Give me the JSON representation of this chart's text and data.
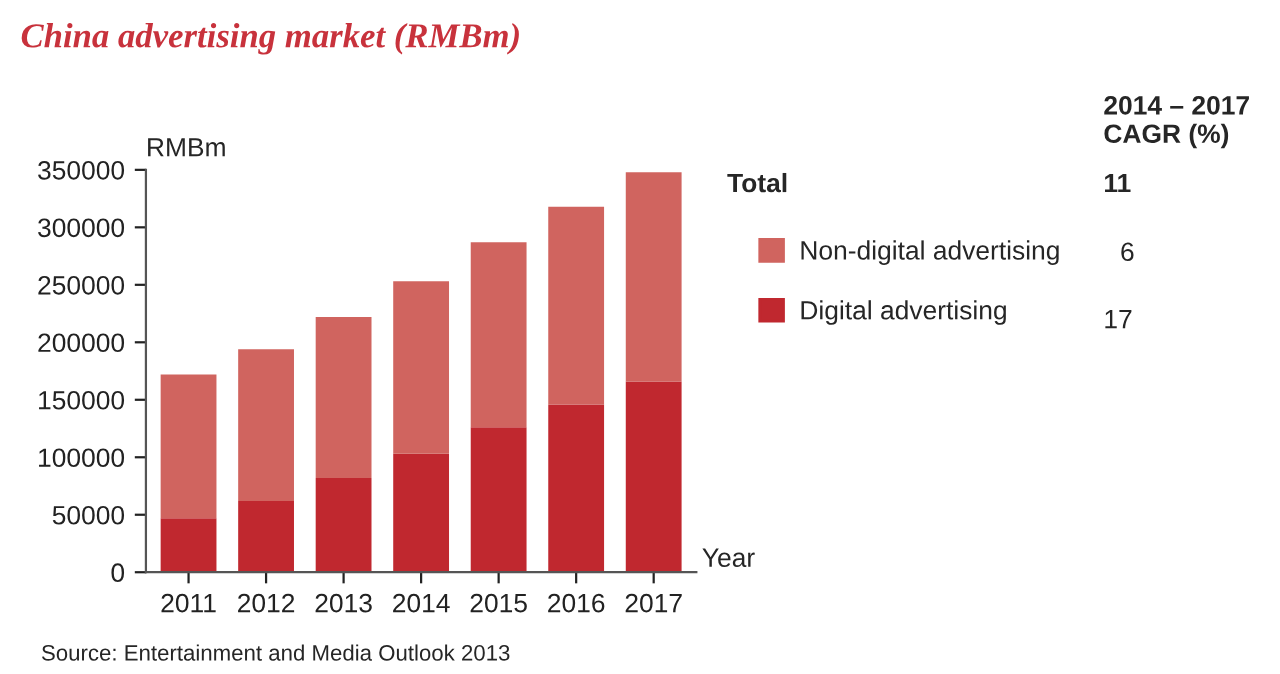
{
  "chart_data": {
    "type": "bar",
    "title": "China advertising market (RMBm)",
    "ylabel": "RMBm",
    "xlabel": "Year",
    "categories": [
      "2011",
      "2012",
      "2013",
      "2014",
      "2015",
      "2016",
      "2017"
    ],
    "stacked": true,
    "series": [
      {
        "name": "Digital advertising",
        "color": "#c0282f",
        "values": [
          47000,
          62000,
          82000,
          103000,
          126000,
          146000,
          166000
        ]
      },
      {
        "name": "Non-digital advertising",
        "color": "#d0645f",
        "values": [
          125000,
          132000,
          140000,
          150000,
          161000,
          172000,
          182000
        ]
      }
    ],
    "ylim": [
      0,
      350000
    ],
    "yticks": [
      0,
      50000,
      100000,
      150000,
      200000,
      250000,
      300000,
      350000
    ],
    "grid": false,
    "legend": "right",
    "annotations": [
      "2014 – 2017\nCAGR (%)",
      "Total",
      "11",
      "17",
      "6",
      "Source: Entertainment and Media Outlook 2013"
    ]
  }
}
